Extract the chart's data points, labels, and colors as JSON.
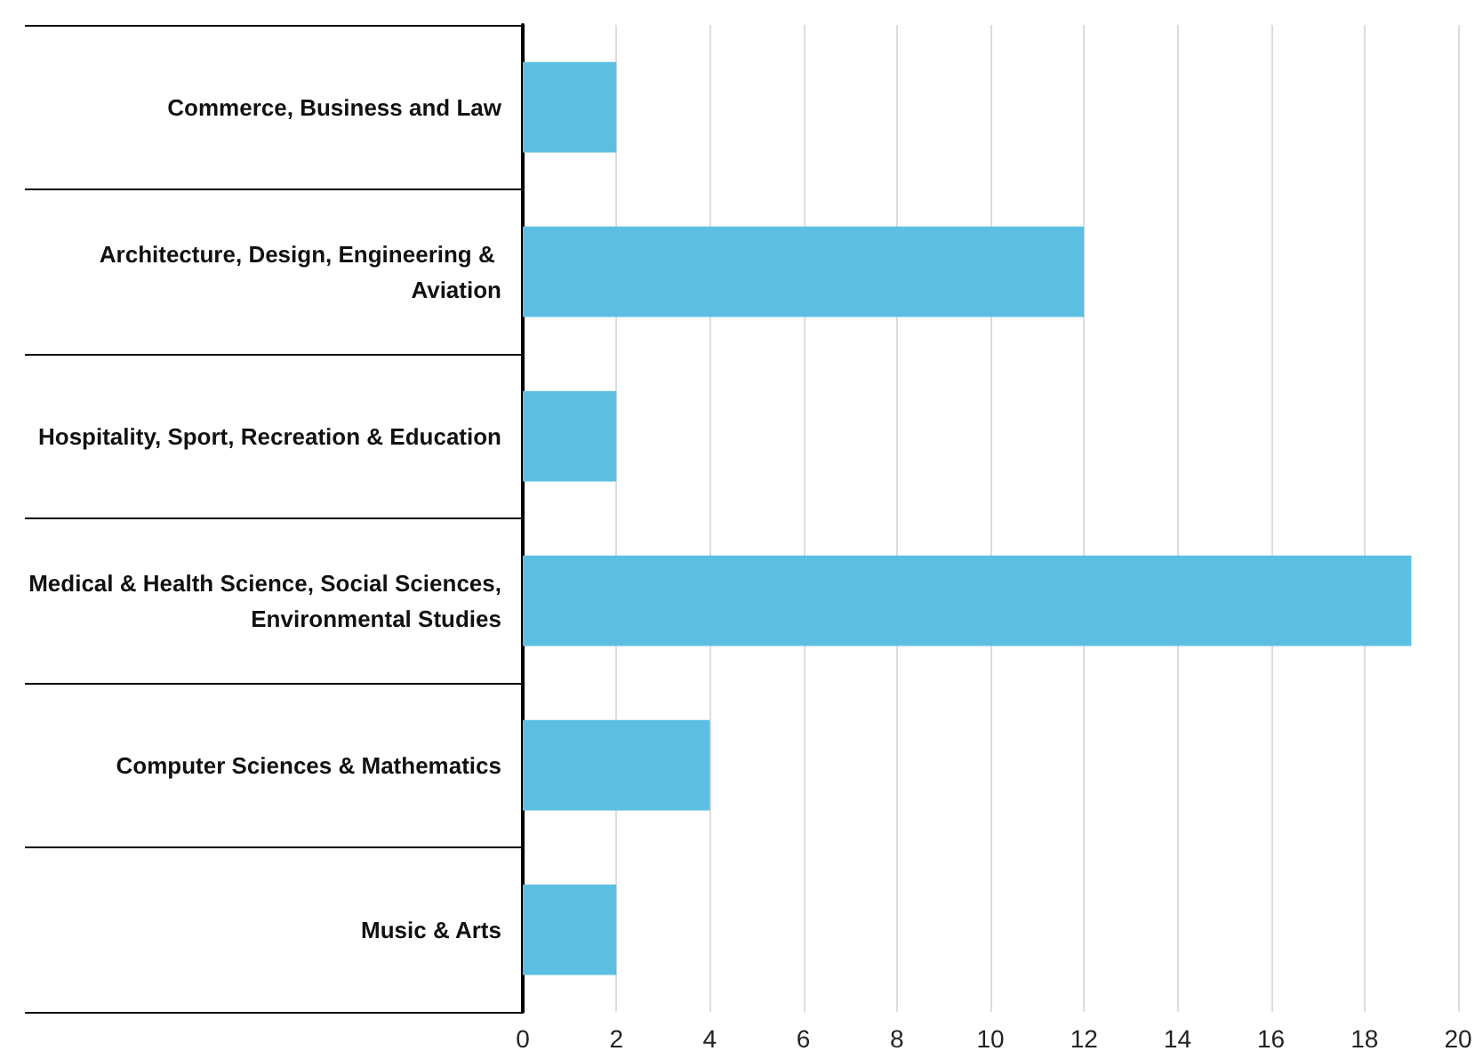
{
  "chart_data": {
    "type": "bar",
    "orientation": "horizontal",
    "categories": [
      "Commerce, Business and Law",
      "Architecture, Design, Engineering & Aviation",
      "Hospitality, Sport, Recreation & Education",
      "Medical & Health Science, Social Sciences, Environmental Studies",
      "Computer Sciences & Mathematics",
      "Music & Arts"
    ],
    "values": [
      2,
      12,
      2,
      19,
      4,
      2
    ],
    "color": "#5cbfe2",
    "xlim": [
      0,
      20
    ],
    "xticks": [
      0,
      2,
      4,
      6,
      8,
      10,
      12,
      14,
      16,
      18,
      20
    ],
    "grid": "x"
  }
}
